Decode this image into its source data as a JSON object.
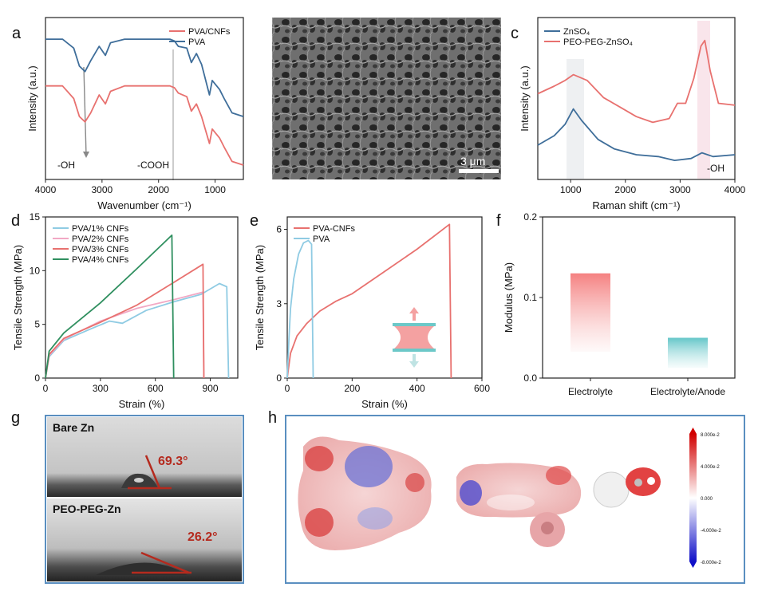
{
  "panels": {
    "a": {
      "label": "a"
    },
    "b": {
      "label": "b",
      "scale_bar": "3 μm"
    },
    "c": {
      "label": "c"
    },
    "d": {
      "label": "d"
    },
    "e": {
      "label": "e"
    },
    "f": {
      "label": "f"
    },
    "g": {
      "label": "g",
      "top_title": "Bare Zn",
      "top_angle": "69.3°",
      "bottom_title": "PEO-PEG-Zn",
      "bottom_angle": "26.2°"
    },
    "h": {
      "label": "h",
      "colorbar_ticks": [
        "8.000e-2",
        "4.000e-2",
        "0.000",
        "-4.000e-2",
        "-8.000e-2"
      ]
    }
  },
  "colors": {
    "red": "#e8716f",
    "blue": "#3f6e9a",
    "lightblue": "#8fcbe3",
    "pink": "#f2a8c4",
    "green": "#2f8f5f",
    "teal": "#6cc8c8"
  },
  "chart_data": [
    {
      "id": "a",
      "type": "line",
      "xlabel": "Wavenumber (cm⁻¹)",
      "ylabel": "Intensity (a.u.)",
      "xlim": [
        4000,
        500
      ],
      "xticks": [
        "4000",
        "3000",
        "2000",
        "1000"
      ],
      "annotations": [
        "-OH",
        "-COOH"
      ],
      "series": [
        {
          "name": "PVA/CNFs",
          "color": "#e8716f",
          "points": [
            [
              4000,
              0.62
            ],
            [
              3700,
              0.62
            ],
            [
              3500,
              0.55
            ],
            [
              3400,
              0.45
            ],
            [
              3300,
              0.42
            ],
            [
              3200,
              0.47
            ],
            [
              3050,
              0.57
            ],
            [
              2940,
              0.52
            ],
            [
              2850,
              0.59
            ],
            [
              2600,
              0.62
            ],
            [
              1800,
              0.62
            ],
            [
              1720,
              0.61
            ],
            [
              1650,
              0.58
            ],
            [
              1500,
              0.56
            ],
            [
              1420,
              0.48
            ],
            [
              1330,
              0.52
            ],
            [
              1240,
              0.45
            ],
            [
              1100,
              0.3
            ],
            [
              1050,
              0.38
            ],
            [
              920,
              0.33
            ],
            [
              840,
              0.28
            ],
            [
              700,
              0.2
            ],
            [
              500,
              0.18
            ]
          ]
        },
        {
          "name": "PVA",
          "color": "#3f6e9a",
          "points": [
            [
              4000,
              0.88
            ],
            [
              3700,
              0.88
            ],
            [
              3500,
              0.83
            ],
            [
              3400,
              0.73
            ],
            [
              3300,
              0.7
            ],
            [
              3200,
              0.76
            ],
            [
              3050,
              0.84
            ],
            [
              2940,
              0.79
            ],
            [
              2850,
              0.86
            ],
            [
              2600,
              0.88
            ],
            [
              1800,
              0.88
            ],
            [
              1720,
              0.87
            ],
            [
              1650,
              0.84
            ],
            [
              1500,
              0.83
            ],
            [
              1420,
              0.75
            ],
            [
              1330,
              0.8
            ],
            [
              1240,
              0.74
            ],
            [
              1100,
              0.57
            ],
            [
              1050,
              0.65
            ],
            [
              920,
              0.6
            ],
            [
              840,
              0.55
            ],
            [
              700,
              0.47
            ],
            [
              500,
              0.45
            ]
          ]
        }
      ]
    },
    {
      "id": "c",
      "type": "line",
      "xlabel": "Raman shift (cm⁻¹)",
      "ylabel": "Intensity (a.u.)",
      "xlim": [
        400,
        4000
      ],
      "xticks": [
        "1000",
        "2000",
        "3000",
        "4000"
      ],
      "annotations": [
        "-OH"
      ],
      "series": [
        {
          "name": "ZnSO₄",
          "color": "#3f6e9a",
          "points": [
            [
              400,
              0.33
            ],
            [
              700,
              0.38
            ],
            [
              900,
              0.44
            ],
            [
              1050,
              0.52
            ],
            [
              1200,
              0.46
            ],
            [
              1500,
              0.36
            ],
            [
              1800,
              0.31
            ],
            [
              2200,
              0.28
            ],
            [
              2600,
              0.27
            ],
            [
              2900,
              0.25
            ],
            [
              3200,
              0.26
            ],
            [
              3400,
              0.29
            ],
            [
              3600,
              0.27
            ],
            [
              4000,
              0.28
            ]
          ]
        },
        {
          "name": "PEO-PEG-ZnSO₄",
          "color": "#e8716f",
          "points": [
            [
              400,
              0.6
            ],
            [
              700,
              0.64
            ],
            [
              900,
              0.67
            ],
            [
              1050,
              0.7
            ],
            [
              1300,
              0.67
            ],
            [
              1600,
              0.58
            ],
            [
              1900,
              0.53
            ],
            [
              2200,
              0.48
            ],
            [
              2500,
              0.45
            ],
            [
              2800,
              0.47
            ],
            [
              2950,
              0.55
            ],
            [
              3100,
              0.55
            ],
            [
              3250,
              0.68
            ],
            [
              3380,
              0.85
            ],
            [
              3450,
              0.88
            ],
            [
              3550,
              0.72
            ],
            [
              3700,
              0.55
            ],
            [
              4000,
              0.54
            ]
          ]
        }
      ]
    },
    {
      "id": "d",
      "type": "line",
      "xlabel": "Strain (%)",
      "ylabel": "Tensile Strength (MPa)",
      "xlim": [
        0,
        1050
      ],
      "ylim": [
        0,
        15
      ],
      "xticks": [
        "0",
        "300",
        "600",
        "900"
      ],
      "yticks": [
        "0",
        "5",
        "10",
        "15"
      ],
      "series": [
        {
          "name": "PVA/1% CNFs",
          "color": "#8fcbe3",
          "points": [
            [
              0,
              0
            ],
            [
              20,
              2
            ],
            [
              100,
              3.5
            ],
            [
              250,
              4.6
            ],
            [
              350,
              5.3
            ],
            [
              420,
              5.1
            ],
            [
              550,
              6.3
            ],
            [
              700,
              7.1
            ],
            [
              850,
              7.8
            ],
            [
              950,
              8.8
            ],
            [
              990,
              8.5
            ],
            [
              1000,
              0
            ]
          ]
        },
        {
          "name": "PVA/2% CNFs",
          "color": "#f2a8c4",
          "points": [
            [
              0,
              0
            ],
            [
              20,
              2.1
            ],
            [
              100,
              3.6
            ],
            [
              300,
              5.3
            ],
            [
              500,
              6.5
            ],
            [
              700,
              7.3
            ],
            [
              860,
              8.0
            ],
            [
              865,
              0
            ]
          ]
        },
        {
          "name": "PVA/3% CNFs",
          "color": "#e8716f",
          "points": [
            [
              0,
              0
            ],
            [
              20,
              2.2
            ],
            [
              100,
              3.7
            ],
            [
              300,
              5.2
            ],
            [
              500,
              6.8
            ],
            [
              700,
              8.9
            ],
            [
              860,
              10.6
            ],
            [
              865,
              0
            ]
          ]
        },
        {
          "name": "PVA/4% CNFs",
          "color": "#2f8f5f",
          "points": [
            [
              0,
              0
            ],
            [
              20,
              2.5
            ],
            [
              100,
              4.2
            ],
            [
              300,
              7.0
            ],
            [
              500,
              10.2
            ],
            [
              690,
              13.3
            ],
            [
              700,
              0
            ]
          ]
        }
      ]
    },
    {
      "id": "e",
      "type": "line",
      "xlabel": "Strain (%)",
      "ylabel": "Tensile Strength (MPa)",
      "xlim": [
        0,
        600
      ],
      "ylim": [
        0,
        6.5
      ],
      "xticks": [
        "0",
        "200",
        "400",
        "600"
      ],
      "yticks": [
        "0",
        "3",
        "6"
      ],
      "series": [
        {
          "name": "PVA-CNFs",
          "color": "#e8716f",
          "points": [
            [
              0,
              0
            ],
            [
              10,
              1.0
            ],
            [
              30,
              1.7
            ],
            [
              60,
              2.2
            ],
            [
              100,
              2.7
            ],
            [
              150,
              3.1
            ],
            [
              200,
              3.4
            ],
            [
              300,
              4.3
            ],
            [
              400,
              5.2
            ],
            [
              500,
              6.2
            ],
            [
              505,
              0
            ]
          ]
        },
        {
          "name": "PVA",
          "color": "#8fcbe3",
          "points": [
            [
              0,
              0
            ],
            [
              5,
              1.5
            ],
            [
              10,
              2.8
            ],
            [
              20,
              4.0
            ],
            [
              35,
              5.0
            ],
            [
              50,
              5.45
            ],
            [
              65,
              5.55
            ],
            [
              75,
              5.4
            ],
            [
              80,
              0
            ]
          ]
        }
      ]
    },
    {
      "id": "f",
      "type": "bar",
      "ylabel": "Modulus (MPa)",
      "ylim": [
        0,
        0.2
      ],
      "yticks": [
        "0.0",
        "0.1",
        "0.2"
      ],
      "categories": [
        "Electrolyte",
        "Electrolyte/Anode"
      ],
      "values": [
        0.13,
        0.05
      ]
    }
  ]
}
